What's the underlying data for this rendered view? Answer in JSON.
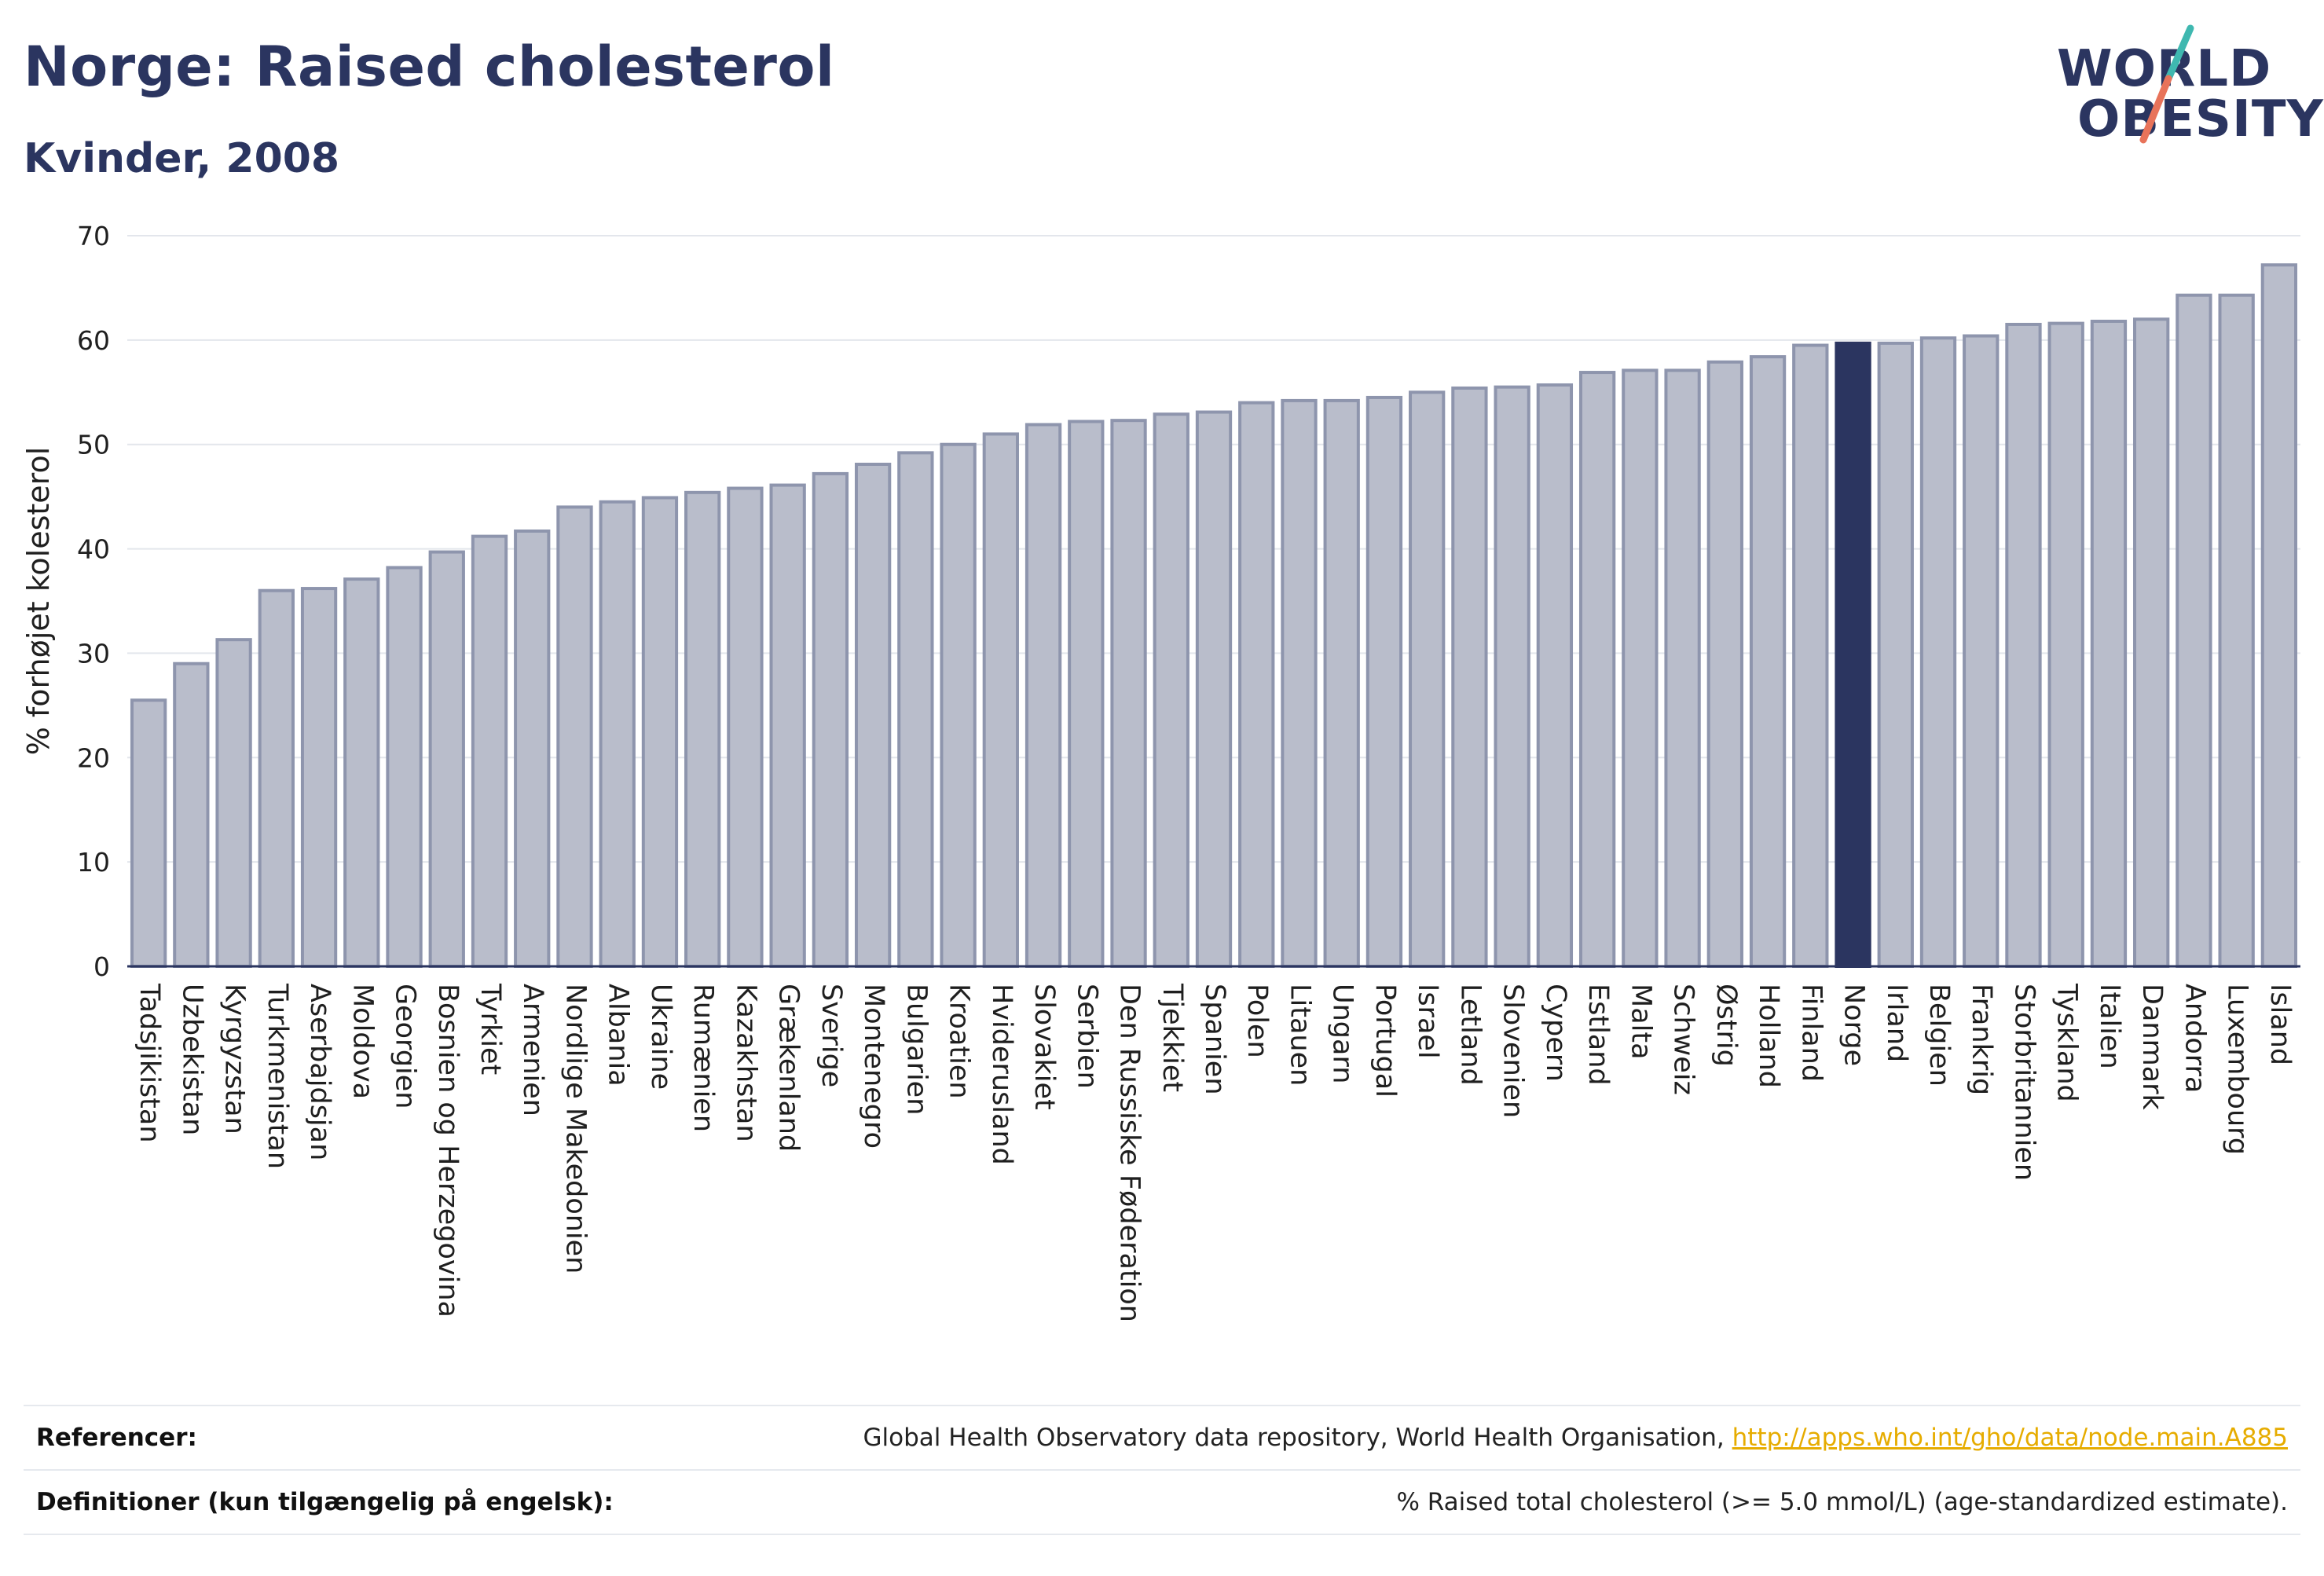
{
  "header": {
    "title": "Norge: Raised cholesterol",
    "subtitle": "Kvinder, 2008"
  },
  "logo": {
    "line1": "WORLD",
    "line2": "OBESITY",
    "colors": {
      "text": "#2b3560",
      "slash_teal": "#3fb8b0",
      "slash_coral": "#e8735a"
    }
  },
  "chart_data": {
    "type": "bar",
    "title": "Norge: Raised cholesterol",
    "subtitle": "Kvinder, 2008",
    "ylabel": "% forhøjet kolesterol",
    "xlabel": "",
    "ylim": [
      0,
      70
    ],
    "yticks": [
      0,
      10,
      20,
      30,
      40,
      50,
      60,
      70
    ],
    "grid": true,
    "highlight": "Norge",
    "colors": {
      "bar": "#b9bdcb",
      "bar_edge": "#8e95ad",
      "highlight": "#2b3560"
    },
    "categories": [
      "Tadsjikistan",
      "Uzbekistan",
      "Kyrgyzstan",
      "Turkmenistan",
      "Aserbajdsjan",
      "Moldova",
      "Georgien",
      "Bosnien og Herzegovina",
      "Tyrkiet",
      "Armenien",
      "Nordlige Makedonien",
      "Albania",
      "Ukraine",
      "Rumænien",
      "Kazakhstan",
      "Grækenland",
      "Sverige",
      "Montenegro",
      "Bulgarien",
      "Kroatien",
      "Hviderusland",
      "Slovakiet",
      "Serbien",
      "Den Russiske Føderation",
      "Tjekkiet",
      "Spanien",
      "Polen",
      "Litauen",
      "Ungarn",
      "Portugal",
      "Israel",
      "Letland",
      "Slovenien",
      "Cypern",
      "Estland",
      "Malta",
      "Schweiz",
      "Østrig",
      "Holland",
      "Finland",
      "Norge",
      "Irland",
      "Belgien",
      "Frankrig",
      "Storbritannien",
      "Tyskland",
      "Italien",
      "Danmark",
      "Andorra",
      "Luxembourg",
      "Island"
    ],
    "values": [
      25.5,
      29.0,
      31.3,
      36.0,
      36.2,
      37.1,
      38.2,
      39.7,
      41.2,
      41.7,
      44.0,
      44.5,
      44.9,
      45.4,
      45.8,
      46.1,
      47.2,
      48.1,
      49.2,
      50.0,
      51.0,
      51.9,
      52.2,
      52.3,
      52.9,
      53.1,
      54.0,
      54.2,
      54.2,
      54.5,
      55.0,
      55.4,
      55.5,
      55.7,
      56.9,
      57.1,
      57.1,
      57.9,
      58.4,
      59.5,
      59.7,
      59.7,
      60.2,
      60.4,
      61.5,
      61.6,
      61.8,
      62.0,
      64.3,
      64.3,
      67.2
    ]
  },
  "footer": {
    "references_label": "Referencer:",
    "references_text": "Global Health Observatory data repository, World Health Organisation,",
    "references_link": "http://apps.who.int/gho/data/node.main.A885",
    "definitions_label": "Definitioner (kun tilgængelig på engelsk):",
    "definitions_text": "% Raised total cholesterol (>= 5.0 mmol/L) (age-standardized estimate)."
  }
}
